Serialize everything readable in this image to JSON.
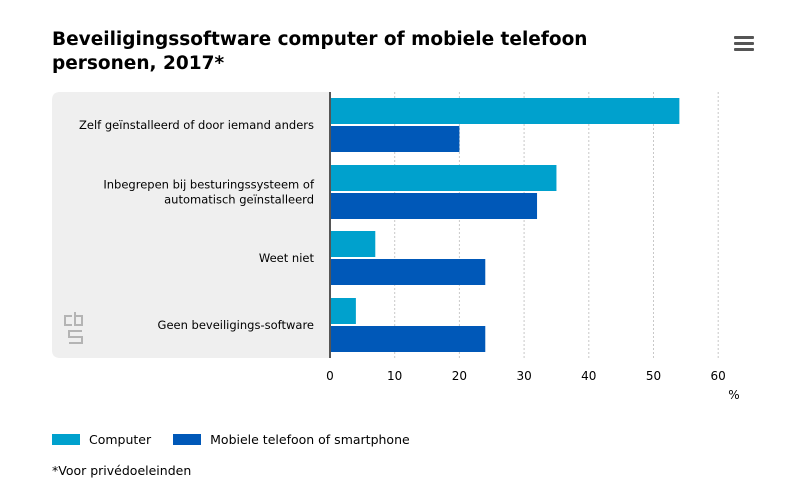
{
  "title": "Beveiligingssoftware computer of mobiele telefoon personen, 2017*",
  "menu_icon": "hamburger-menu-icon",
  "footnote": "*Voor privédoeleinden",
  "colors": {
    "computer": "#00a1cd",
    "mobile": "#0058b8",
    "plot_background": "#efefef",
    "gridline": "#c8c8c8",
    "axis": "#555555",
    "logo": "#b4b4b4"
  },
  "logo_icon": "cbs-logo-icon",
  "chart_data": {
    "type": "bar",
    "orientation": "horizontal",
    "categories": [
      [
        "Zelf geïnstalleerd of door iemand anders"
      ],
      [
        "Inbegrepen bij besturingssysteem of",
        "automatisch geïnstalleerd"
      ],
      [
        "Weet niet"
      ],
      [
        "Geen beveiligings-software"
      ]
    ],
    "series": [
      {
        "name": "Computer",
        "values": [
          54,
          35,
          7,
          4
        ]
      },
      {
        "name": "Mobiele telefoon of smartphone",
        "values": [
          20,
          32,
          24,
          24
        ]
      }
    ],
    "xlim": [
      0,
      60
    ],
    "ticks": [
      "0",
      "10",
      "20",
      "30",
      "40",
      "50",
      "60"
    ],
    "unit_label": "%",
    "grid": true,
    "legend_position": "bottom-left"
  }
}
